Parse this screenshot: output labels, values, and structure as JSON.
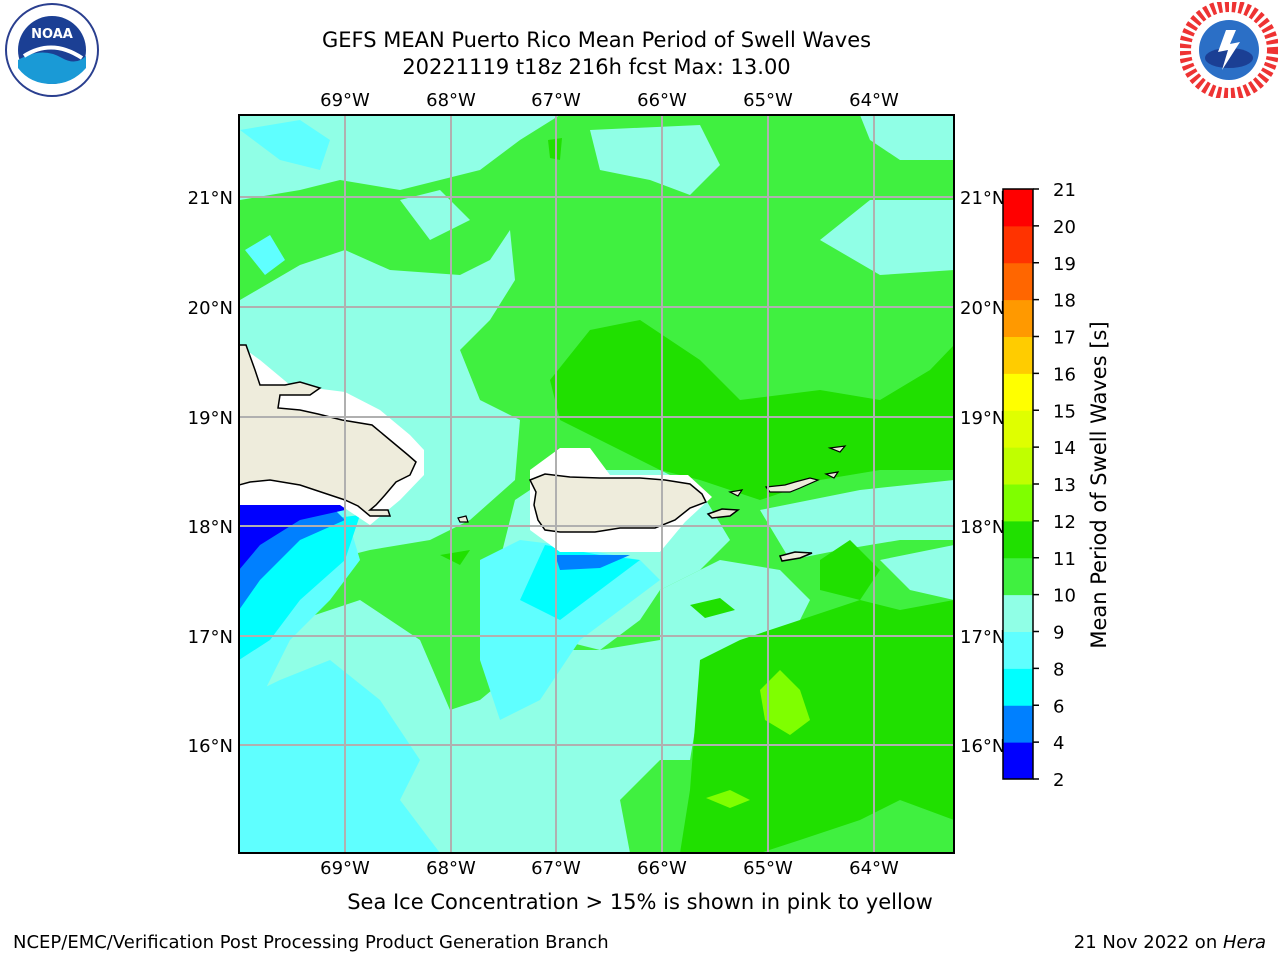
{
  "title_line1": "GEFS MEAN Puerto Rico Mean Period of Swell Waves",
  "title_line2": "20221119 t18z 216h fcst   Max: 13.00",
  "lon_labels": [
    "69°W",
    "68°W",
    "67°W",
    "66°W",
    "65°W",
    "64°W"
  ],
  "lat_labels": [
    "21°N",
    "20°N",
    "19°N",
    "18°N",
    "17°N",
    "16°N"
  ],
  "colorbar": {
    "label": "Mean Period of Swell Waves [s]",
    "ticks": [
      "2",
      "4",
      "6",
      "8",
      "9",
      "10",
      "11",
      "12",
      "13",
      "14",
      "15",
      "16",
      "17",
      "18",
      "19",
      "20",
      "21"
    ],
    "colors": [
      "#0000ff",
      "#0080ff",
      "#00ffff",
      "#5fffff",
      "#90ffe6",
      "#40f040",
      "#20e000",
      "#7fff00",
      "#c0ff00",
      "#dfff00",
      "#ffff00",
      "#ffcc00",
      "#ff9900",
      "#ff6600",
      "#ff3300",
      "#ff0000"
    ]
  },
  "map_colors": {
    "land": "#eeecdc",
    "grid": "#b0b0b0"
  },
  "note": "Sea Ice Concentration > 15% is shown in pink to yellow",
  "footer_left": "NCEP/EMC/Verification Post Processing Product Generation Branch",
  "footer_date": "21 Nov 2022 on ",
  "footer_machine": "Hera",
  "logos": {
    "left": "noaa-logo",
    "right": "nws-logo"
  }
}
